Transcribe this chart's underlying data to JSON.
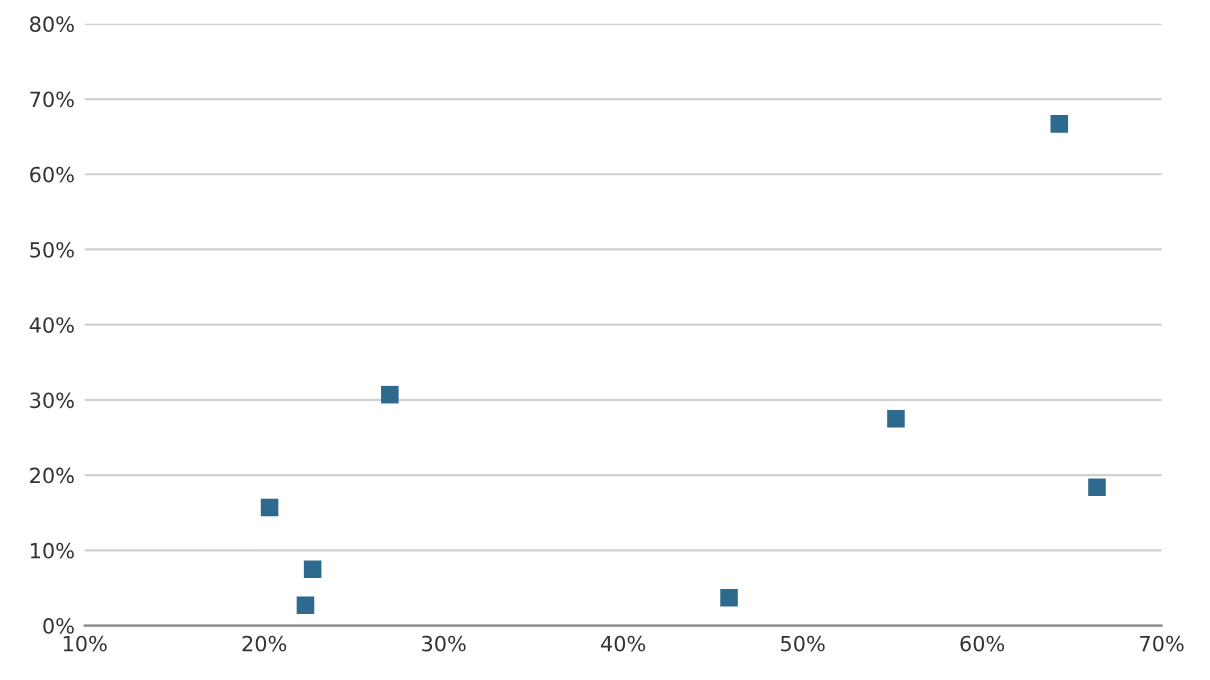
{
  "chart_data": {
    "type": "scatter",
    "x": [
      64.3,
      27.0,
      55.2,
      20.3,
      66.4,
      22.7,
      22.3,
      45.9
    ],
    "series": [
      {
        "color": "#2e6a8e",
        "values": [
          66.7,
          30.7,
          27.5,
          15.7,
          18.4,
          7.5,
          2.7,
          3.7
        ]
      }
    ],
    "xlim": [
      10,
      70
    ],
    "xticks": [
      {
        "value": 10,
        "label": "10%"
      },
      {
        "value": 20,
        "label": "20%"
      },
      {
        "value": 30,
        "label": "30%"
      },
      {
        "value": 40,
        "label": "40%"
      },
      {
        "value": 50,
        "label": "50%"
      },
      {
        "value": 60,
        "label": "60%"
      },
      {
        "value": 70,
        "label": "70%"
      }
    ],
    "ylim": [
      0,
      80
    ],
    "yticks": [
      {
        "value": 0,
        "label": "0%"
      },
      {
        "value": 10,
        "label": "10%"
      },
      {
        "value": 20,
        "label": "20%"
      },
      {
        "value": 30,
        "label": "30%"
      },
      {
        "value": 40,
        "label": "40%"
      },
      {
        "value": 50,
        "label": "50%"
      },
      {
        "value": 60,
        "label": "60%"
      },
      {
        "value": 70,
        "label": "70%"
      },
      {
        "value": 80,
        "label": "80%"
      }
    ],
    "grid": "y",
    "marker": "square",
    "legend": false
  }
}
